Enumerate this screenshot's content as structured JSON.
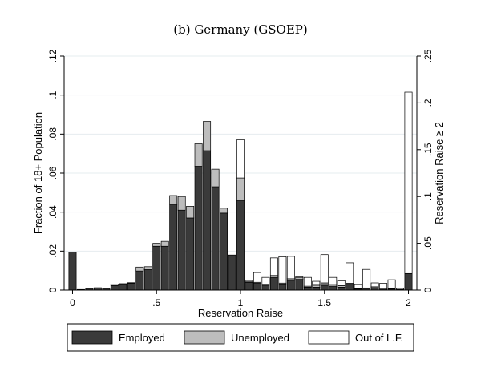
{
  "chart_data": {
    "type": "bar",
    "stacked": true,
    "title": "(b) Germany (GSOEP)",
    "xlabel": "Reservation Raise",
    "ylabel_left": "Fraction of 18+ Population",
    "ylabel_right": "Reservation Raise ≥ 2",
    "xlim": [
      -0.05,
      2.05
    ],
    "ylim_left": [
      0,
      0.12
    ],
    "ylim_right": [
      0,
      0.25
    ],
    "x_ticks": [
      "0",
      ".5",
      "1",
      "1.5",
      "2"
    ],
    "y_ticks_left": [
      "0",
      ".02",
      ".04",
      ".06",
      ".08",
      ".1",
      ".12"
    ],
    "y_ticks_right": [
      "0",
      ".05",
      ".1",
      ".15",
      ".2",
      ".25"
    ],
    "grid": true,
    "legend_position": "bottom",
    "bin_width": 0.05,
    "x": [
      0.0,
      0.05,
      0.1,
      0.15,
      0.2,
      0.25,
      0.3,
      0.35,
      0.4,
      0.45,
      0.5,
      0.55,
      0.6,
      0.65,
      0.7,
      0.75,
      0.8,
      0.85,
      0.9,
      0.95,
      1.0,
      1.05,
      1.1,
      1.15,
      1.2,
      1.25,
      1.3,
      1.35,
      1.4,
      1.45,
      1.5,
      1.55,
      1.6,
      1.65,
      1.7,
      1.75,
      1.8,
      1.85,
      1.9,
      1.95,
      2.0
    ],
    "series": [
      {
        "name": "Employed",
        "color": "#3a3a3a",
        "values": [
          0.0195,
          0.0003,
          0.0008,
          0.0012,
          0.0008,
          0.0023,
          0.0028,
          0.0035,
          0.0098,
          0.0105,
          0.0225,
          0.0225,
          0.044,
          0.041,
          0.037,
          0.0635,
          0.0715,
          0.053,
          0.0395,
          0.018,
          0.046,
          0.004,
          0.0035,
          0.0025,
          0.0065,
          0.0028,
          0.005,
          0.0055,
          0.0015,
          0.0015,
          0.0025,
          0.002,
          0.0015,
          0.003,
          0.0005,
          0.0008,
          0.0012,
          0.0005,
          0.0005,
          0.0002,
          0.0085
        ]
      },
      {
        "name": "Unemployed",
        "color": "#bdbdbd",
        "values": [
          0,
          0,
          0,
          0,
          0,
          0.0008,
          0.0005,
          0.0003,
          0.002,
          0.0015,
          0.0015,
          0.0025,
          0.0045,
          0.007,
          0.006,
          0.0115,
          0.015,
          0.009,
          0.0025,
          0.0,
          0.0115,
          0.0005,
          0.0005,
          0.0005,
          0.001,
          0.0008,
          0.0008,
          0.0008,
          0.0005,
          0.001,
          0.0012,
          0.001,
          0.0008,
          0.0005,
          0.0003,
          0.0003,
          0.0005,
          0.0005,
          0.0003,
          0.0002,
          0.0
        ]
      },
      {
        "name": "Out of L.F.",
        "color": "#ffffff",
        "values": [
          0,
          0,
          0,
          0,
          0,
          0,
          0,
          0,
          0,
          0,
          0,
          0,
          0,
          0,
          0,
          0,
          0,
          0,
          0,
          0,
          0.0195,
          0.0005,
          0.005,
          0.0035,
          0.009,
          0.0135,
          0.0115,
          0.0005,
          0.0045,
          0.002,
          0.0145,
          0.0035,
          0.0025,
          0.0105,
          0.002,
          0.0095,
          0.002,
          0.0025,
          0.0045,
          0.0005,
          0.093
        ]
      }
    ]
  },
  "legend": {
    "items": [
      {
        "label": "Employed",
        "color": "#3a3a3a"
      },
      {
        "label": "Unemployed",
        "color": "#bdbdbd"
      },
      {
        "label": "Out of L.F.",
        "color": "#ffffff"
      }
    ]
  }
}
